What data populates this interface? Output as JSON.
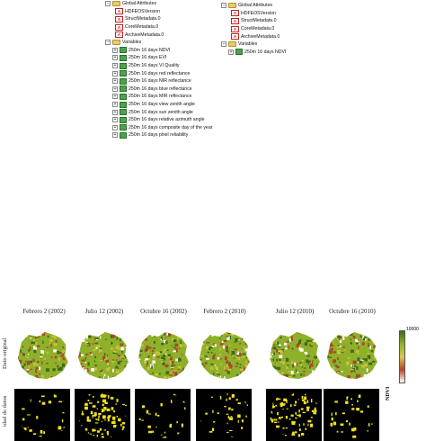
{
  "tree_left": {
    "global_attributes": {
      "label": "Global Attributes",
      "items": [
        "HDFEOSVersion",
        "StructMetadata.0",
        "CoreMetadata.0",
        "ArchiveMetadata.0"
      ]
    },
    "variables": {
      "label": "Variables",
      "items": [
        "250m 16 days NDVI",
        "250m 16 days EVI",
        "250m 16 days VI Quality",
        "250m 16 days red reflectance",
        "250m 16 days NIR reflectance",
        "250m 16 days blue reflectance",
        "250m 16 days MIR reflectance",
        "250m 16 days view zenith angle",
        "250m 16 days sun zenith angle",
        "250m 16 days relative azimuth angle",
        "250m 16 days composite day of the year",
        "250m 16 days pixel reliability"
      ]
    }
  },
  "tree_right": {
    "global_attributes": {
      "label": "Global Attributes",
      "items": [
        "HDFEOSVersion",
        "StructMetadata.0",
        "CoreMetadata.0",
        "ArchiveMetadata.0"
      ]
    },
    "variables": {
      "label": "Variables",
      "items": [
        "250m 16 days NDVI"
      ]
    }
  },
  "figure": {
    "columns": [
      "Febrero 2 (2002)",
      "Julio 12 (2002)",
      "Octubre 16 (2002)",
      "Febrero 2 (2010)",
      "Julio 12 (2010)",
      "Octubre 16 (2010)"
    ],
    "rows": [
      "Dato original",
      "idad de datos"
    ],
    "colorbar_max": "10000",
    "colorbar_label": "NDVI"
  },
  "icons": {
    "folder": "folder-icon",
    "attribute": "attribute-icon",
    "variable": "variable-icon",
    "expander_open": "−",
    "expander_closed": "+"
  },
  "colors": {
    "ndvi_high": "#3e6a1a",
    "ndvi_mid": "#8fb02a",
    "ndvi_low": "#b2452a",
    "mask_valid": "#f0e020",
    "mask_background": "#000000"
  }
}
